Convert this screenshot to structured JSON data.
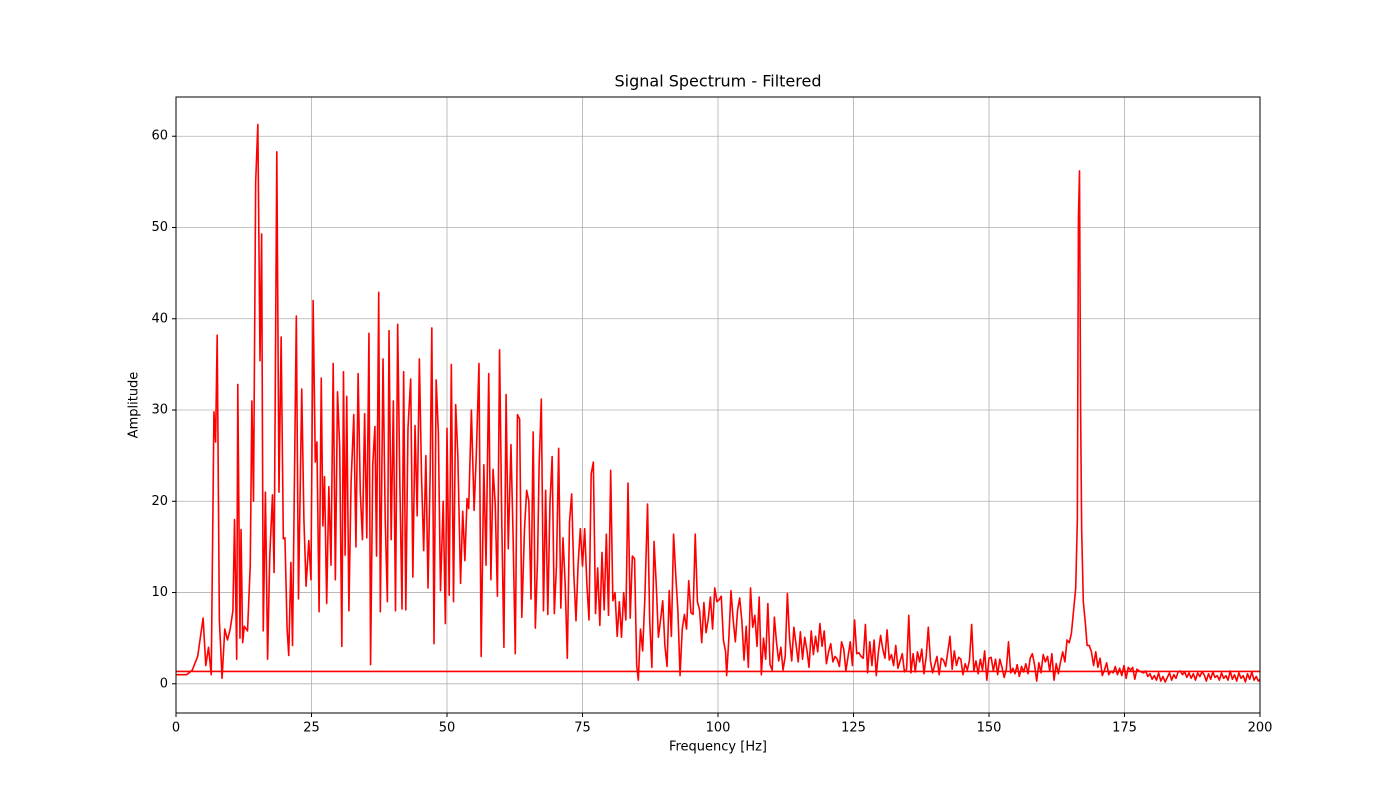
{
  "chart_data": {
    "type": "line",
    "title": "Signal Spectrum - Filtered",
    "x_label": "Frequency [Hz]",
    "y_label": "Amplitude",
    "xlim": [
      0,
      200
    ],
    "xticks": [
      0,
      25,
      50,
      75,
      100,
      125,
      150,
      175,
      200
    ],
    "ylim": [
      -3.2,
      64.3
    ],
    "yticks": [
      0,
      10,
      20,
      30,
      40,
      50,
      60
    ],
    "grid": true,
    "series": [
      {
        "color": "#ff0000",
        "x": [
          0,
          2,
          3,
          4,
          5,
          5.5,
          6,
          6.5,
          7,
          7.3,
          7.6,
          8,
          8.5,
          9,
          9.5,
          10,
          10.5,
          10.8,
          11.2,
          11.4,
          11.8,
          12,
          12.3,
          12.6,
          13.2,
          13.7,
          14,
          14.3,
          14.7,
          15.1,
          15.5,
          15.8,
          16.1,
          16.5,
          16.9,
          17.3,
          17.8,
          18.1,
          18.6,
          19,
          19.4,
          19.8,
          20.1,
          20.5,
          20.8,
          21.2,
          21.5,
          22.2,
          22.6,
          23.2,
          23.6,
          24,
          24.5,
          24.9,
          25.3,
          25.7,
          26,
          26.4,
          26.8,
          27.1,
          27.4,
          27.8,
          28.2,
          28.6,
          29,
          29.4,
          29.8,
          30.2,
          30.6,
          30.9,
          31.2,
          31.5,
          31.9,
          32.3,
          32.8,
          33.2,
          33.6,
          34,
          34.4,
          34.8,
          35.2,
          35.6,
          35.9,
          36.3,
          36.7,
          37,
          37.4,
          37.7,
          38.2,
          38.6,
          39,
          39.3,
          39.7,
          40.1,
          40.5,
          40.9,
          41.3,
          41.7,
          42,
          42.4,
          42.8,
          43.3,
          43.7,
          44.1,
          44.5,
          44.9,
          45.3,
          45.7,
          46.1,
          46.5,
          46.9,
          47.2,
          47.6,
          48,
          48.4,
          48.8,
          49.3,
          49.7,
          50,
          50.4,
          50.8,
          51.2,
          51.6,
          52,
          52.5,
          52.9,
          53.3,
          53.7,
          54,
          54.5,
          55,
          55.4,
          55.9,
          56.3,
          56.8,
          57.2,
          57.7,
          58.1,
          58.5,
          58.9,
          59.3,
          59.7,
          60.1,
          60.5,
          60.9,
          61.3,
          61.8,
          62.2,
          62.6,
          63,
          63.4,
          63.8,
          64.3,
          64.7,
          65.1,
          65.5,
          65.9,
          66.3,
          66.7,
          67,
          67.4,
          67.8,
          68.2,
          68.6,
          69,
          69.4,
          69.8,
          70.2,
          70.6,
          71,
          71.4,
          71.8,
          72.2,
          72.6,
          73,
          73.4,
          73.8,
          74.2,
          74.6,
          75,
          75.4,
          75.8,
          76.2,
          76.6,
          77,
          77.4,
          77.8,
          78.2,
          78.6,
          79,
          79.4,
          79.8,
          80.2,
          80.6,
          81,
          81.4,
          81.8,
          82.2,
          82.6,
          83,
          83.4,
          83.8,
          84.2,
          84.6,
          85,
          85.3,
          85.7,
          86.1,
          86.5,
          87,
          87.4,
          87.8,
          88.2,
          88.6,
          89,
          89.4,
          89.8,
          90.2,
          90.6,
          91,
          91.4,
          91.8,
          92.2,
          92.6,
          93,
          93.4,
          93.8,
          94.2,
          94.6,
          95,
          95.4,
          95.8,
          96.2,
          96.6,
          97,
          97.4,
          97.8,
          98.2,
          98.6,
          99,
          99.4,
          99.8,
          100.2,
          100.6,
          101,
          101.4,
          101.6,
          102,
          102.4,
          102.8,
          103.2,
          103.6,
          104,
          104.4,
          104.8,
          105.2,
          105.6,
          106,
          106.4,
          106.8,
          107.2,
          107.6,
          108,
          108.4,
          108.8,
          109.2,
          109.6,
          110,
          110.4,
          110.8,
          111.2,
          111.6,
          112,
          112.4,
          112.8,
          113.2,
          113.6,
          114,
          114.4,
          114.8,
          115.2,
          115.6,
          116,
          116.4,
          116.8,
          117.2,
          117.6,
          118,
          118.4,
          118.8,
          119.2,
          119.6,
          120,
          120.4,
          120.8,
          121.2,
          121.6,
          122,
          122.4,
          122.8,
          123.2,
          123.6,
          124,
          124.4,
          124.8,
          125.2,
          125.6,
          126,
          126.4,
          126.8,
          127.2,
          127.6,
          128,
          128.4,
          128.8,
          129.2,
          129.6,
          130,
          130.4,
          130.8,
          131.2,
          131.6,
          132,
          132.4,
          132.8,
          133.2,
          133.6,
          134,
          134.4,
          134.8,
          135.2,
          135.6,
          136,
          136.4,
          136.8,
          137.2,
          137.6,
          138,
          138.4,
          138.8,
          139.2,
          139.6,
          140,
          140.4,
          140.8,
          141.2,
          141.6,
          142,
          142.4,
          142.8,
          143.2,
          143.6,
          144,
          144.4,
          144.8,
          145.2,
          145.6,
          146,
          146.4,
          146.8,
          147.2,
          147.6,
          148,
          148.4,
          148.8,
          149.2,
          149.6,
          150,
          150.4,
          150.8,
          151.2,
          151.6,
          152,
          152.4,
          152.8,
          153.2,
          153.6,
          154,
          154.4,
          154.8,
          155.2,
          155.6,
          156,
          156.4,
          156.8,
          157.2,
          157.6,
          158,
          158.4,
          158.8,
          159.2,
          159.6,
          160,
          160.4,
          160.8,
          161.2,
          161.6,
          162,
          162.4,
          162.8,
          163.2,
          163.6,
          164,
          164.4,
          164.8,
          165.2,
          165.6,
          166,
          166.3,
          166.5,
          166.7,
          166.9,
          167.1,
          167.4,
          167.8,
          168.1,
          168.5,
          168.9,
          169.3,
          169.7,
          170.1,
          170.5,
          170.9,
          171.3,
          171.7,
          172.1,
          172.5,
          172.9,
          173.3,
          173.7,
          174.1,
          174.5,
          174.9,
          175.3,
          175.7,
          176.1,
          176.5,
          176.9,
          177.3,
          177.7,
          178.1,
          178.5,
          178.9,
          179.3,
          179.7,
          180.1,
          180.5,
          180.9,
          181.3,
          181.7,
          182.1,
          182.5,
          182.9,
          183.3,
          183.7,
          184.1,
          184.5,
          184.9,
          185.3,
          185.7,
          186.1,
          186.5,
          186.9,
          187.3,
          187.7,
          188.1,
          188.5,
          188.9,
          189.3,
          189.7,
          190.1,
          190.5,
          190.9,
          191.3,
          191.7,
          192.1,
          192.5,
          192.9,
          193.3,
          193.7,
          194.1,
          194.5,
          194.9,
          195.3,
          195.7,
          196.1,
          196.5,
          196.9,
          197.3,
          197.7,
          198.1,
          198.5,
          198.9,
          199.3,
          199.7,
          200
        ],
        "values": [
          1,
          1,
          1.5,
          3,
          7.2,
          2,
          4,
          1,
          29.8,
          26.5,
          38.2,
          7,
          0.6,
          6,
          4.8,
          6,
          8,
          18,
          2.7,
          32.8,
          5,
          16.9,
          4.5,
          6.3,
          5.8,
          13,
          31,
          20,
          55,
          61.3,
          35.4,
          49.3,
          5.8,
          21,
          2.7,
          14,
          20.7,
          12.2,
          58.3,
          21,
          38,
          15.9,
          16,
          6,
          3.1,
          13.3,
          4.2,
          40.3,
          9.3,
          32.3,
          18,
          10.7,
          15.7,
          11.4,
          42,
          24.3,
          26.5,
          7.9,
          33.5,
          17.3,
          22.7,
          8.8,
          21.6,
          13,
          35.1,
          11.4,
          32,
          26,
          4.1,
          34.2,
          14.1,
          31.5,
          8,
          22,
          29.5,
          15,
          34,
          21,
          15.8,
          29.6,
          16,
          38.4,
          2.1,
          24,
          28.2,
          14,
          42.9,
          7.9,
          35.6,
          18,
          9,
          38.7,
          15.8,
          31,
          8,
          39.4,
          22,
          8.2,
          34.2,
          8.1,
          28,
          33.4,
          11.7,
          28.3,
          18.4,
          35.6,
          22.7,
          14.6,
          25,
          10.5,
          23.4,
          39,
          4.4,
          33.3,
          27.6,
          10.2,
          20,
          6.6,
          28,
          9.7,
          35,
          9,
          30.6,
          25,
          11,
          18.9,
          13.5,
          20.3,
          19.2,
          30,
          19,
          25,
          35.1,
          3,
          24,
          13,
          34,
          11.4,
          23.5,
          19.7,
          9.6,
          36.6,
          18,
          4,
          31.7,
          14.8,
          26.2,
          16,
          3.3,
          29.5,
          29,
          7.3,
          17,
          21.2,
          20,
          9.3,
          27.6,
          6.1,
          13.5,
          24,
          31.2,
          8,
          21.2,
          7.6,
          19.8,
          24.9,
          7.7,
          13,
          25.8,
          8.3,
          16,
          11,
          2.8,
          17.7,
          20.8,
          12,
          6.9,
          13.2,
          17,
          12.9,
          17,
          11,
          7,
          23,
          24.3,
          7.7,
          12.7,
          6.4,
          14.4,
          8.1,
          16.4,
          7.5,
          23.4,
          9.1,
          10,
          5.2,
          9,
          5.1,
          10,
          7,
          22,
          7.2,
          14,
          13.7,
          2,
          0.4,
          6,
          3.6,
          9.3,
          19.7,
          6.9,
          1.8,
          15.6,
          11,
          5.1,
          7,
          9.1,
          4.2,
          1.9,
          10.2,
          5.2,
          16.4,
          12,
          8,
          0.9,
          6,
          7.6,
          6,
          11.3,
          7.8,
          7.6,
          16.4,
          9,
          8.1,
          4.5,
          8.9,
          5.6,
          7.1,
          9.5,
          6,
          10.5,
          9,
          9.2,
          9.6,
          4.8,
          3.5,
          0.9,
          5,
          10.2,
          7,
          4.6,
          8,
          9.4,
          6.9,
          2.6,
          6.3,
          1.8,
          10.5,
          6.2,
          7.5,
          4.1,
          9.5,
          1,
          5,
          2.7,
          8.8,
          2.1,
          1.5,
          7.3,
          4.5,
          2.5,
          4,
          1.5,
          3,
          9.9,
          5,
          2.5,
          6.2,
          4.3,
          2.4,
          5.7,
          2.7,
          5.1,
          3.7,
          1.8,
          5.8,
          3.2,
          5.2,
          3.5,
          6.6,
          4.1,
          5.8,
          2.2,
          3.5,
          4.4,
          2.4,
          3,
          2.7,
          1.9,
          4.6,
          3.8,
          1.4,
          3,
          4.6,
          2,
          7,
          3.3,
          3.4,
          3,
          2.8,
          6.5,
          1.2,
          4.6,
          2,
          4.8,
          0.9,
          3.5,
          5.3,
          3.8,
          2.8,
          5.9,
          2.6,
          3.2,
          2,
          4.2,
          1.7,
          2.5,
          3.3,
          1.3,
          1.6,
          7.5,
          1.2,
          3.3,
          1.3,
          3.5,
          2.4,
          3.8,
          1.1,
          2.9,
          6.2,
          2.5,
          1.2,
          2.1,
          3,
          1,
          2.8,
          2.6,
          1.9,
          3.5,
          5.2,
          1.6,
          3.6,
          2,
          2.9,
          2.7,
          1,
          2.2,
          1.5,
          2.6,
          6.5,
          1.4,
          2.5,
          1.1,
          2.7,
          1.5,
          3.6,
          0.4,
          2.8,
          2.9,
          1.4,
          2.7,
          1,
          2.7,
          1.8,
          0.7,
          1.6,
          4.6,
          1.2,
          1.7,
          1.1,
          2.1,
          0.8,
          1.9,
          1.3,
          2.2,
          1.1,
          2.8,
          3.3,
          2.1,
          0.3,
          2.3,
          1.2,
          3.2,
          2.4,
          3,
          1.4,
          3.3,
          0.4,
          2.2,
          1.1,
          2.4,
          3.5,
          2.4,
          4.8,
          4.5,
          5.5,
          8,
          10.5,
          18,
          51,
          56.2,
          30,
          16.8,
          9,
          6.5,
          4.2,
          4.2,
          3.5,
          2,
          3.5,
          1.8,
          2.8,
          0.9,
          1.5,
          2.3,
          1,
          1.4,
          1.2,
          1.9,
          1,
          1.7,
          0.9,
          2,
          0.6,
          1.8,
          1.5,
          1.8,
          0.5,
          1.6,
          1.4,
          1.3,
          1.2,
          1.4,
          0.8,
          1.1,
          0.5,
          0.9,
          0.4,
          1.2,
          0.3,
          0.8,
          0.2,
          0.7,
          1.2,
          0.4,
          1,
          0.6,
          1.3,
          1.4,
          1,
          1.3,
          0.7,
          1.2,
          0.6,
          1.1,
          0.4,
          1.2,
          0.8,
          1.3,
          1,
          0.3,
          1.1,
          0.5,
          1.3,
          0.7,
          0.9,
          0.4,
          1.2,
          0.6,
          0.9,
          0.4,
          1.4,
          0.5,
          1,
          0.3,
          1.2,
          0.6,
          0.9,
          0.2,
          1.1,
          0.5,
          1.3,
          0.4,
          0.8,
          0.3,
          0.5
        ]
      },
      {
        "color": "#ff0000",
        "x": [
          0,
          200
        ],
        "values": [
          1.35,
          1.35
        ]
      }
    ]
  }
}
